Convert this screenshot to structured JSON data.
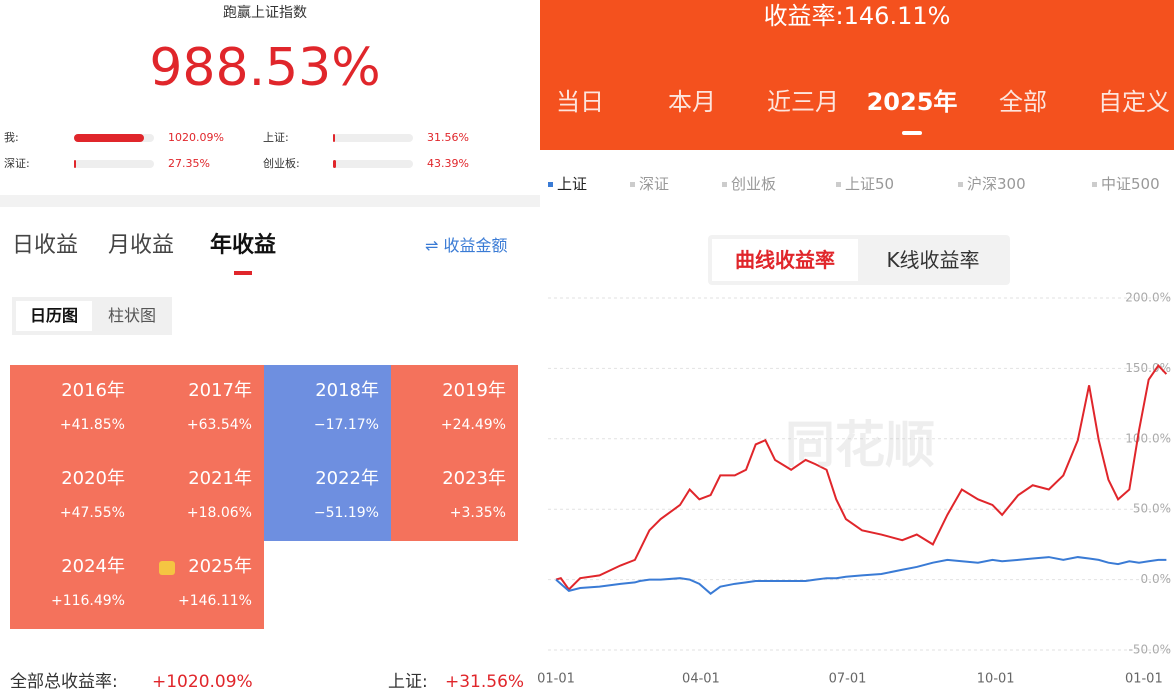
{
  "left": {
    "headline": "跑赢上证指数",
    "excess": "988.53%",
    "compare": [
      {
        "name": "我:",
        "value": 1020.09,
        "label": "1020.09%"
      },
      {
        "name": "上证:",
        "value": 31.56,
        "label": "31.56%"
      },
      {
        "name": "深证:",
        "value": 27.35,
        "label": "27.35%"
      },
      {
        "name": "创业板:",
        "value": 43.39,
        "label": "43.39%"
      }
    ],
    "tabs": [
      "日收益",
      "月收益",
      "年收益"
    ],
    "active_tab": 2,
    "amount_toggle": "⇌ 收益金额",
    "views": [
      "日历图",
      "柱状图"
    ],
    "active_view": 0,
    "years": [
      {
        "year": "2016年",
        "value": 41.85,
        "label": "+41.85%"
      },
      {
        "year": "2017年",
        "value": 63.54,
        "label": "+63.54%"
      },
      {
        "year": "2018年",
        "value": -17.17,
        "label": "−17.17%"
      },
      {
        "year": "2019年",
        "value": 24.49,
        "label": "+24.49%"
      },
      {
        "year": "2020年",
        "value": 47.55,
        "label": "+47.55%"
      },
      {
        "year": "2021年",
        "value": 18.06,
        "label": "+18.06%"
      },
      {
        "year": "2022年",
        "value": -51.19,
        "label": "−51.19%"
      },
      {
        "year": "2023年",
        "value": 3.35,
        "label": "+3.35%"
      },
      {
        "year": "2024年",
        "value": 116.49,
        "label": "+116.49%"
      },
      {
        "year": "2025年",
        "value": 146.11,
        "label": "+146.11%"
      }
    ],
    "footer": {
      "total_label": "全部总收益率:",
      "total": "+1020.09%",
      "index_label": "上证:",
      "index": "+31.56%"
    }
  },
  "right": {
    "header": "收益率:146.11%",
    "periods": [
      "当日",
      "本月",
      "近三月",
      "2025年",
      "全部",
      "自定义"
    ],
    "active_period": 3,
    "modes": [
      "曲线收益率",
      "K线收益率"
    ],
    "active_mode": 0,
    "watermark": "同花顺",
    "other_indices": [
      "深证",
      "创业板",
      "上证50",
      "沪深300",
      "中证500"
    ]
  },
  "chart_data": {
    "type": "line",
    "x": [
      0,
      3,
      8,
      15,
      27,
      40,
      49,
      52,
      58,
      65,
      77,
      83,
      89,
      96,
      102,
      111,
      118,
      124,
      130,
      136,
      146,
      155,
      161,
      168,
      174,
      180,
      190,
      202,
      215,
      224,
      234,
      243,
      252,
      262,
      271,
      277,
      287,
      296,
      306,
      315,
      324,
      331,
      337,
      343,
      349,
      356,
      362,
      368,
      374,
      379
    ],
    "series": [
      {
        "color": "#e0262b",
        "values": [
          0,
          1,
          -7,
          1,
          3,
          10,
          14,
          21,
          35,
          43,
          53,
          64,
          57,
          60,
          74,
          74,
          78,
          96,
          99,
          85,
          78,
          85,
          82,
          78,
          57,
          43,
          35,
          32,
          28,
          32,
          25,
          46,
          64,
          57,
          53,
          46,
          60,
          67,
          64,
          74,
          99,
          138,
          99,
          71,
          57,
          64,
          106,
          142,
          152,
          146
        ]
      },
      {
        "name": "上证",
        "color": "#3a7bd5",
        "values": [
          0,
          -3,
          -8,
          -6,
          -5,
          -3,
          -2,
          -1,
          0,
          0,
          1,
          0,
          -3,
          -10,
          -5,
          -3,
          -2,
          -1,
          -1,
          -1,
          -1,
          -1,
          0,
          1,
          1,
          2,
          3,
          4,
          7,
          9,
          12,
          14,
          13,
          12,
          14,
          13,
          14,
          15,
          16,
          14,
          16,
          15,
          14,
          12,
          11,
          13,
          12,
          13,
          14,
          14
        ]
      }
    ],
    "xlim": [
      0,
      380
    ],
    "xticks": [
      {
        "value": 0,
        "label": "01-01"
      },
      {
        "value": 90,
        "label": "04-01"
      },
      {
        "value": 181,
        "label": "07-01"
      },
      {
        "value": 273,
        "label": "10-01"
      },
      {
        "value": 365,
        "label": "01-01"
      }
    ],
    "ylim": [
      -50,
      200
    ],
    "yticks": [
      {
        "value": -50,
        "label": "-50.0%"
      },
      {
        "value": 0,
        "label": "0.0%"
      },
      {
        "value": 50,
        "label": "50.0%"
      },
      {
        "value": 100,
        "label": "100.0%"
      },
      {
        "value": 150,
        "label": "150.0%"
      },
      {
        "value": 200,
        "label": "200.0%"
      }
    ],
    "grid": true
  }
}
